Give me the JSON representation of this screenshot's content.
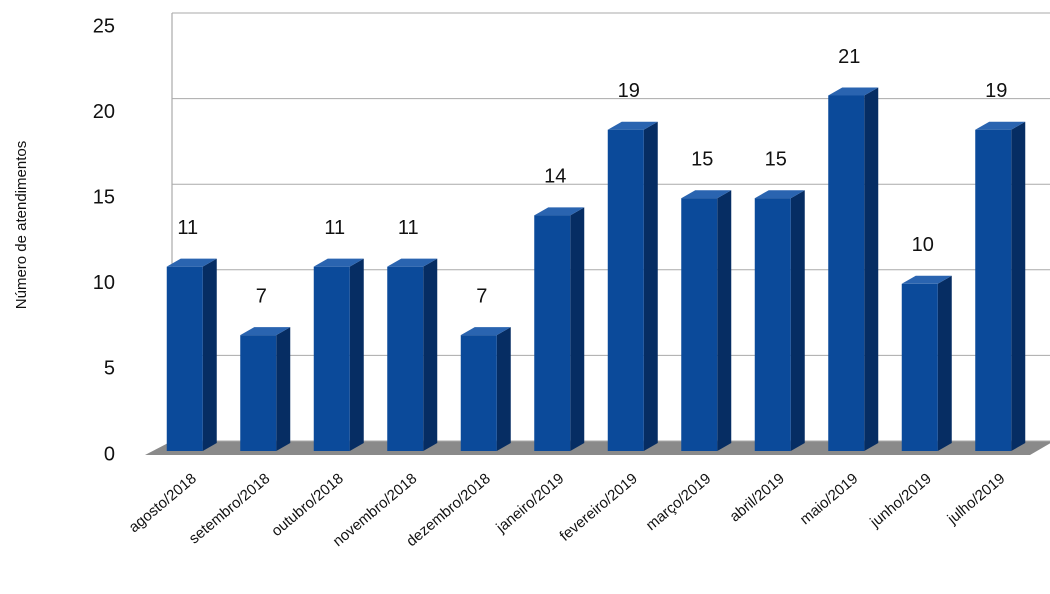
{
  "chart_data": {
    "type": "bar",
    "y_label": "Número de atendimentos",
    "categories": [
      "agosto/2018",
      "setembro/2018",
      "outubro/2018",
      "novembro/2018",
      "dezembro/2018",
      "janeiro/2019",
      "fevereiro/2019",
      "março/2019",
      "abril/2019",
      "maio/2019",
      "junho/2019",
      "julho/2019"
    ],
    "values": [
      11,
      7,
      11,
      11,
      7,
      14,
      19,
      15,
      15,
      21,
      10,
      19
    ],
    "color": "#0b4a9a",
    "ylim": [
      0,
      25
    ],
    "yticks": [
      0,
      5,
      10,
      15,
      20,
      25
    ],
    "grid": true
  }
}
